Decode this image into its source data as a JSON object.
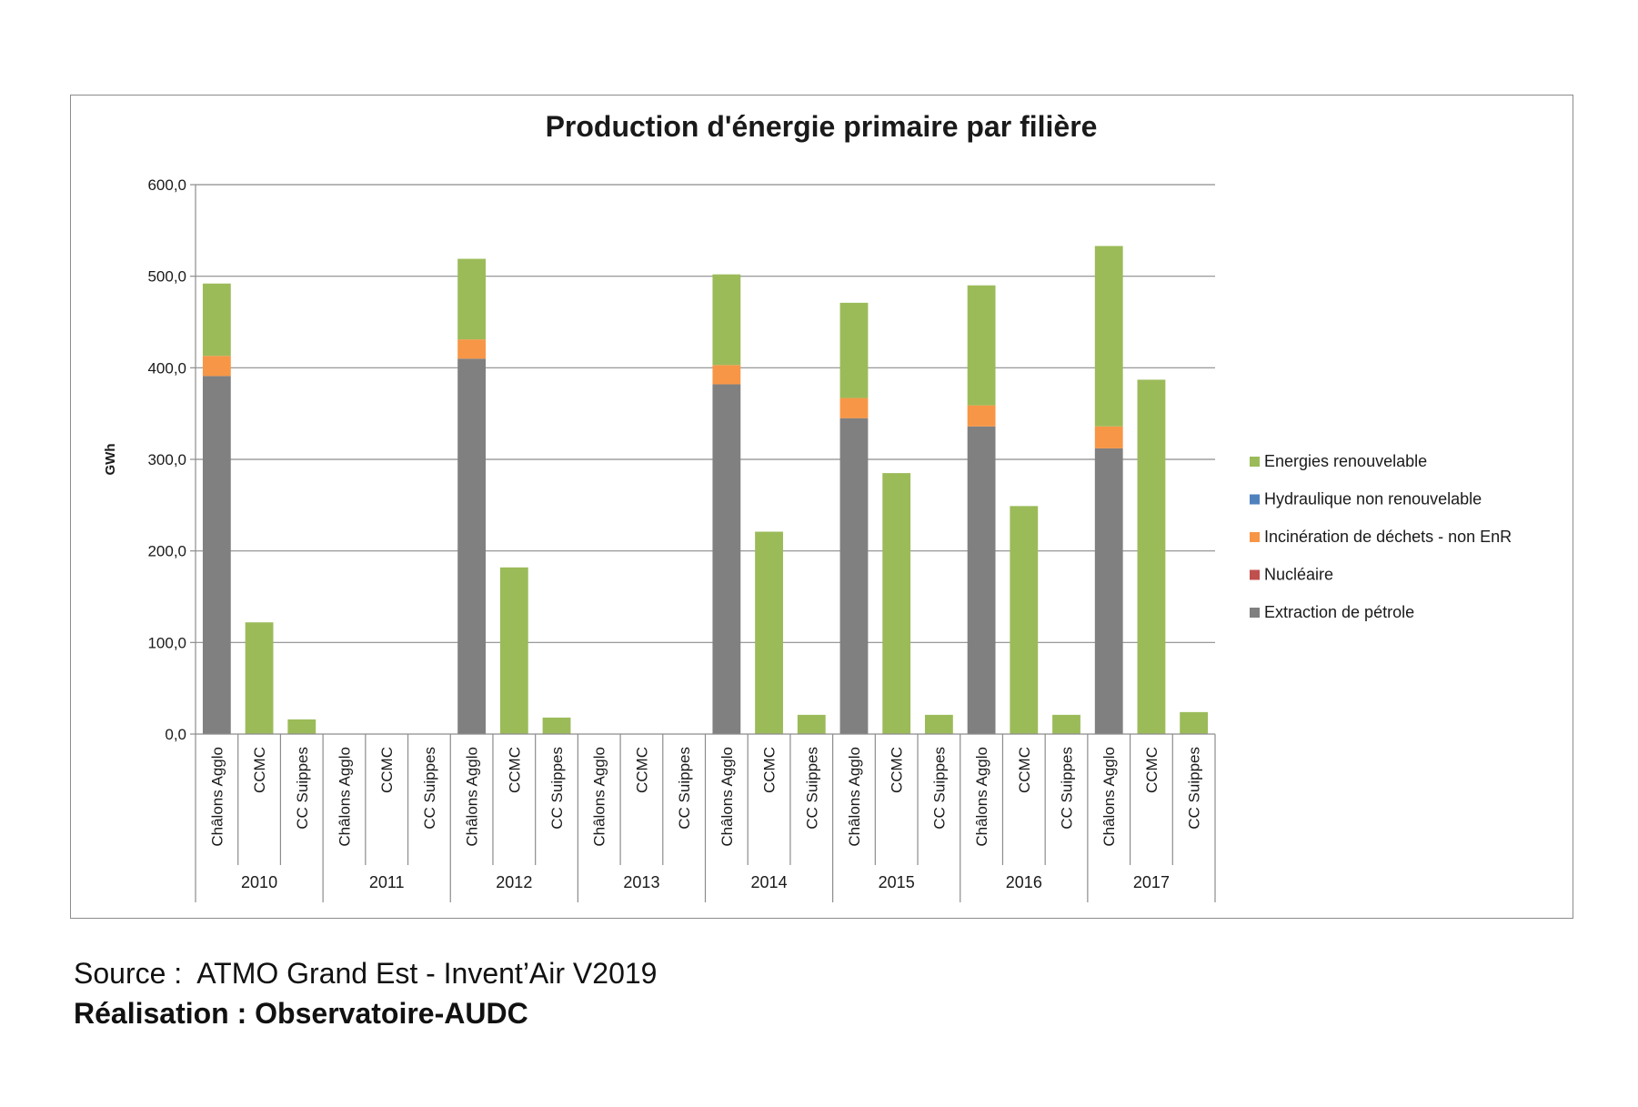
{
  "chart_data": {
    "type": "bar",
    "stacked": true,
    "title": "Production d'énergie primaire par filière",
    "ylabel": "GWh",
    "ylim": [
      0,
      600
    ],
    "yticks": [
      "0,0",
      "100,0",
      "200,0",
      "300,0",
      "400,0",
      "500,0",
      "600,0"
    ],
    "grid": true,
    "legend_position": "right",
    "years": [
      "2010",
      "2011",
      "2012",
      "2013",
      "2014",
      "2015",
      "2016",
      "2017"
    ],
    "sub_categories": [
      "Châlons Agglo",
      "CCMC",
      "CC Suippes"
    ],
    "categories": [
      "2010 Châlons Agglo",
      "2010 CCMC",
      "2010 CC Suippes",
      "2011 Châlons Agglo",
      "2011 CCMC",
      "2011 CC Suippes",
      "2012 Châlons Agglo",
      "2012 CCMC",
      "2012 CC Suippes",
      "2013 Châlons Agglo",
      "2013 CCMC",
      "2013 CC Suippes",
      "2014 Châlons Agglo",
      "2014 CCMC",
      "2014 CC Suippes",
      "2015 Châlons Agglo",
      "2015 CCMC",
      "2015 CC Suippes",
      "2016 Châlons Agglo",
      "2016 CCMC",
      "2016 CC Suippes",
      "2017 Châlons Agglo",
      "2017 CCMC",
      "2017 CC Suippes"
    ],
    "series": [
      {
        "name": "Extraction de pétrole",
        "color": "#808080",
        "values": [
          391,
          0,
          0,
          0,
          0,
          0,
          410,
          0,
          0,
          0,
          0,
          0,
          382,
          0,
          0,
          345,
          0,
          0,
          336,
          0,
          0,
          312,
          0,
          0
        ]
      },
      {
        "name": "Nucléaire",
        "color": "#c0504d",
        "values": [
          0,
          0,
          0,
          0,
          0,
          0,
          0,
          0,
          0,
          0,
          0,
          0,
          0,
          0,
          0,
          0,
          0,
          0,
          0,
          0,
          0,
          0,
          0,
          0
        ]
      },
      {
        "name": "Incinération de déchets - non EnR",
        "color": "#f79646",
        "values": [
          22,
          0,
          0,
          0,
          0,
          0,
          21,
          0,
          0,
          0,
          0,
          0,
          21,
          0,
          0,
          22,
          0,
          0,
          23,
          0,
          0,
          24,
          0,
          0
        ]
      },
      {
        "name": "Hydraulique non renouvelable",
        "color": "#4f81bd",
        "values": [
          0,
          0,
          0,
          0,
          0,
          0,
          0,
          0,
          0,
          0,
          0,
          0,
          0,
          0,
          0,
          0,
          0,
          0,
          0,
          0,
          0,
          0,
          0,
          0
        ]
      },
      {
        "name": "Energies renouvelable",
        "color": "#9bbb59",
        "values": [
          79,
          122,
          16,
          0,
          0,
          0,
          88,
          182,
          18,
          0,
          0,
          0,
          99,
          221,
          21,
          104,
          285,
          21,
          131,
          249,
          21,
          197,
          387,
          24
        ]
      }
    ],
    "legend_order": [
      "Energies renouvelable",
      "Hydraulique non renouvelable",
      "Incinération de déchets - non EnR",
      "Nucléaire",
      "Extraction de pétrole"
    ]
  },
  "footer": {
    "source": "Source :  ATMO Grand Est - Invent’Air V2019",
    "credit": "Réalisation : Observatoire-AUDC"
  }
}
